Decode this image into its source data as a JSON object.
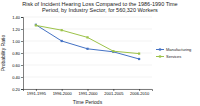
{
  "chart_data": {
    "type": "line",
    "title": "Risk of Incident Hearing Loss Compared to the 1986-1990 Time\nPeriod, by Industry Sector, for 560,320 Workers",
    "xlabel": "Time Periods",
    "ylabel": "Probability Ratio",
    "categories": [
      "1991-1995",
      "1996-2000",
      "1991-2000",
      "2001-2005",
      "2006-2010"
    ],
    "series": [
      {
        "name": "Manufacturing",
        "color": "#4472c4",
        "marker": "square",
        "values": [
          1.27,
          1.0,
          0.87,
          0.82,
          0.7
        ]
      },
      {
        "name": "Services",
        "color": "#9dc34a",
        "marker": "square",
        "values": [
          1.26,
          1.18,
          1.06,
          0.83,
          0.79
        ]
      }
    ],
    "ylim": [
      0.2,
      1.4
    ],
    "yticks": [
      {
        "value": 0.2,
        "label": "0.20"
      },
      {
        "value": 0.4,
        "label": "0.40"
      },
      {
        "value": 0.6,
        "label": "0.60"
      },
      {
        "value": 0.8,
        "label": "0.80"
      },
      {
        "value": 1.0,
        "label": "1.00"
      },
      {
        "value": 1.2,
        "label": "1.20"
      },
      {
        "value": 1.4,
        "label": "1.40"
      }
    ],
    "grid": true,
    "legend": "right"
  }
}
